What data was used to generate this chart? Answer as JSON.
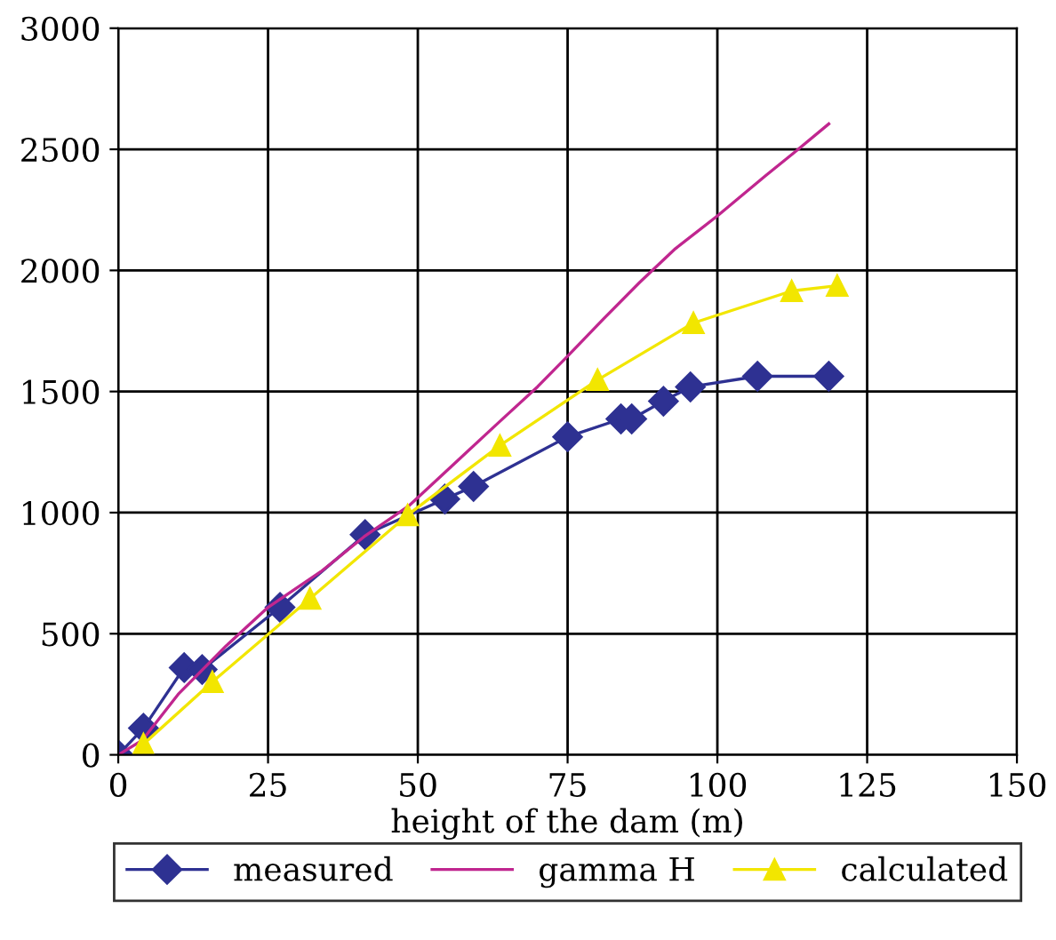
{
  "chart_data": {
    "type": "line",
    "xlabel": "height of the dam (m)",
    "xlim": [
      0,
      150
    ],
    "xticks": [
      0,
      25,
      50,
      75,
      100,
      125,
      150
    ],
    "ylim": [
      0,
      3000
    ],
    "yticks": [
      0,
      500,
      1000,
      1500,
      2000,
      2500,
      3000
    ],
    "grid": true,
    "legend": "bottom",
    "series": [
      {
        "name": "measured",
        "color": "#2e3192",
        "marker": "diamond",
        "x": [
          0,
          4.2,
          11,
          14,
          27,
          41.2,
          54.5,
          59.3,
          75,
          83.9,
          85.7,
          91,
          95.5,
          106.7,
          118.6
        ],
        "values": [
          0,
          110,
          360,
          352,
          609,
          909,
          1056,
          1108,
          1313,
          1387,
          1387,
          1460,
          1519,
          1563,
          1563
        ]
      },
      {
        "name": "gamma H",
        "color": "#c0268f",
        "marker": "none",
        "x": [
          0,
          4,
          10,
          18,
          25,
          33.8,
          41,
          48.6,
          56,
          63.4,
          70,
          75,
          81,
          87,
          93,
          100,
          108,
          113,
          118.6
        ],
        "values": [
          0,
          60,
          250,
          450,
          609,
          756,
          900,
          1030,
          1200,
          1370,
          1520,
          1646,
          1800,
          1950,
          2090,
          2225,
          2390,
          2490,
          2605
        ]
      },
      {
        "name": "calculated",
        "color": "#f2e600",
        "marker": "triangle",
        "x": [
          4.2,
          15.7,
          32,
          48.3,
          63.7,
          80,
          96,
          112.4,
          120
        ],
        "values": [
          44,
          301,
          645,
          990,
          1277,
          1548,
          1783,
          1915,
          1937
        ]
      }
    ]
  }
}
